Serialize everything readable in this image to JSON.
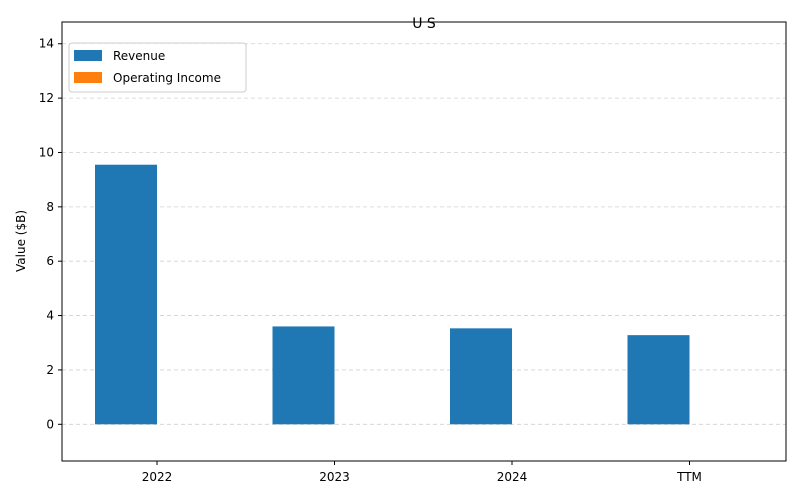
{
  "chart_data": {
    "type": "bar",
    "title": "U S",
    "xlabel": "",
    "ylabel": "Value ($B)",
    "categories": [
      "2022",
      "2023",
      "2024",
      "TTM"
    ],
    "series": [
      {
        "name": "Revenue",
        "color": "#1f77b4",
        "values": [
          9.55,
          3.6,
          3.53,
          3.28
        ]
      },
      {
        "name": "Operating Income",
        "color": "#ff7f0e",
        "values": [
          0,
          0,
          0,
          0
        ]
      }
    ],
    "ylim": [
      -1.35,
      14.8
    ],
    "yticks": [
      0,
      2,
      4,
      6,
      8,
      10,
      12,
      14
    ],
    "grid": true,
    "legend_position": "top-left"
  }
}
